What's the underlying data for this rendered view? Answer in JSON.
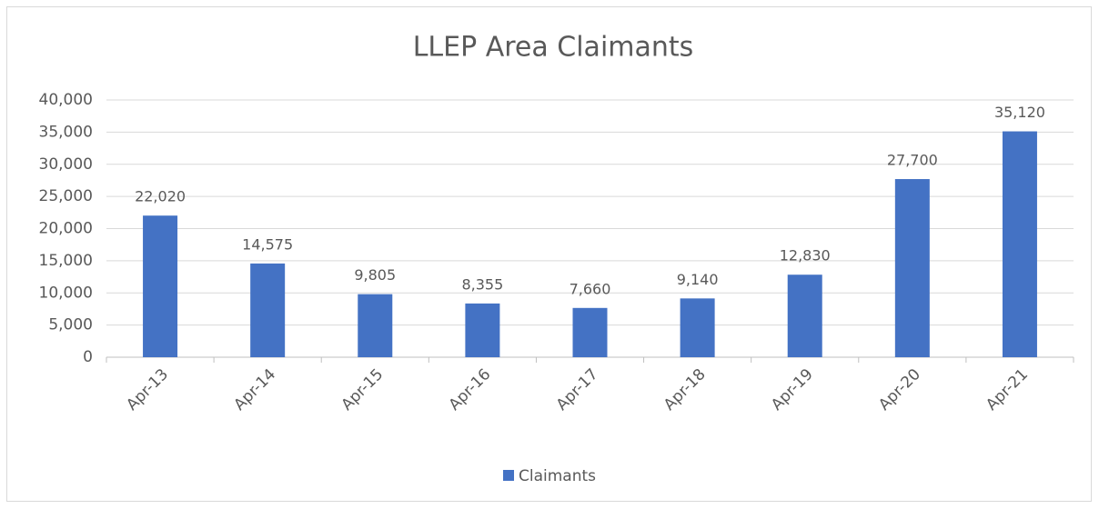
{
  "chart_data": {
    "type": "bar",
    "title": "LLEP Area Claimants",
    "categories": [
      "Apr-13",
      "Apr-14",
      "Apr-15",
      "Apr-16",
      "Apr-17",
      "Apr-18",
      "Apr-19",
      "Apr-20",
      "Apr-21"
    ],
    "series": [
      {
        "name": "Claimants",
        "color": "#4472c4",
        "values": [
          22020,
          14575,
          9805,
          8355,
          7660,
          9140,
          12830,
          27700,
          35120
        ],
        "value_labels": [
          "22,020",
          "14,575",
          "9,805",
          "8,355",
          "7,660",
          "9,140",
          "12,830",
          "27,700",
          "35,120"
        ]
      }
    ],
    "ylim": [
      0,
      40000
    ],
    "yticks": [
      0,
      {
        "value": 5000,
        "label": "5,000"
      },
      {
        "value": 10000,
        "label": "10,000"
      },
      {
        "value": 15000,
        "label": "15,000"
      },
      {
        "value": 20000,
        "label": "20,000"
      },
      {
        "value": 25000,
        "label": "25,000"
      },
      {
        "value": 30000,
        "label": "30,000"
      },
      {
        "value": 35000,
        "label": "35,000"
      },
      {
        "value": 40000,
        "label": "40,000"
      }
    ],
    "grid": true,
    "legend": "bottom"
  }
}
